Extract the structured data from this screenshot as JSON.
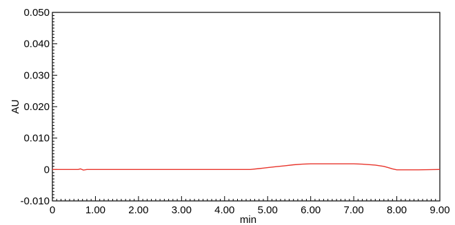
{
  "chart_data": {
    "type": "line",
    "xlabel": "min",
    "ylabel": "AU",
    "xlim": [
      0,
      9.0
    ],
    "ylim": [
      -0.01,
      0.05
    ],
    "x_ticks": [
      0,
      1.0,
      2.0,
      3.0,
      4.0,
      5.0,
      6.0,
      7.0,
      8.0,
      9.0
    ],
    "x_tick_labels": [
      "0",
      "1.00",
      "2.00",
      "3.00",
      "4.00",
      "5.00",
      "6.00",
      "7.00",
      "8.00",
      "9.00"
    ],
    "y_ticks": [
      -0.01,
      0,
      0.01,
      0.02,
      0.03,
      0.04,
      0.05
    ],
    "y_tick_labels": [
      "-0.010",
      "0",
      "0.010",
      "0.020",
      "0.030",
      "0.040",
      "0.050"
    ],
    "grid": false,
    "series": [
      {
        "color": "#e8332a",
        "x": [
          0,
          0.6,
          0.65,
          0.72,
          0.8,
          4.6,
          4.8,
          5.0,
          5.2,
          5.4,
          5.6,
          5.8,
          6.0,
          6.5,
          7.0,
          7.2,
          7.5,
          7.7,
          7.8,
          7.9,
          8.0,
          8.5,
          9.0
        ],
        "y": [
          0,
          0,
          0.0002,
          -0.0002,
          0,
          0,
          0.0003,
          0.0006,
          0.0009,
          0.0012,
          0.0015,
          0.0017,
          0.0018,
          0.0018,
          0.0018,
          0.0017,
          0.0014,
          0.001,
          0.0006,
          0.0002,
          -0.0001,
          -0.0001,
          0
        ]
      }
    ]
  }
}
